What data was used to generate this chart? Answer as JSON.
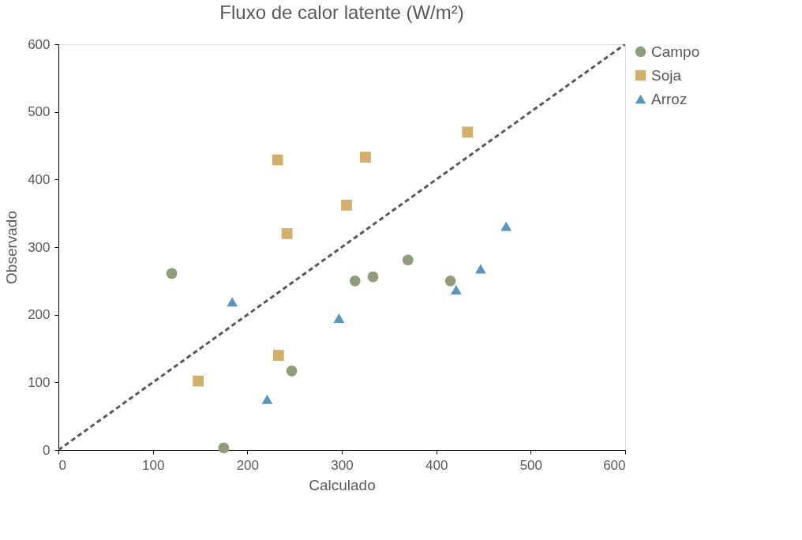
{
  "chart_data": {
    "type": "scatter",
    "title": "Fluxo de calor latente (W/m²)",
    "xlabel": "Calculado",
    "ylabel": "Observado",
    "xlim": [
      0,
      600
    ],
    "xticks": [
      0,
      100,
      200,
      300,
      400,
      500,
      600
    ],
    "ylim": [
      0,
      600
    ],
    "yticks": [
      0,
      100,
      200,
      300,
      400,
      500,
      600
    ],
    "grid": false,
    "legend": "right",
    "series": [
      {
        "name": "Campo",
        "color": "#8e9d77",
        "marker": "circle",
        "x": [
          120,
          175,
          247,
          314,
          333,
          370,
          415
        ],
        "values": [
          261,
          3,
          117,
          250,
          256,
          281,
          250
        ]
      },
      {
        "name": "Soja",
        "color": "#d4ae6b",
        "marker": "square",
        "x": [
          148,
          232,
          242,
          233,
          305,
          325,
          433
        ],
        "values": [
          102,
          429,
          320,
          140,
          362,
          433,
          470
        ]
      },
      {
        "name": "Arroz",
        "color": "#5897bd",
        "marker": "triangle",
        "x": [
          184,
          221,
          297,
          421,
          447,
          474
        ],
        "values": [
          219,
          75,
          195,
          237,
          268,
          331
        ]
      },
      {
        "type": "line",
        "color": "#595959",
        "line_style": "dashed",
        "x": [
          0,
          600
        ],
        "values": [
          0,
          600
        ]
      }
    ]
  }
}
